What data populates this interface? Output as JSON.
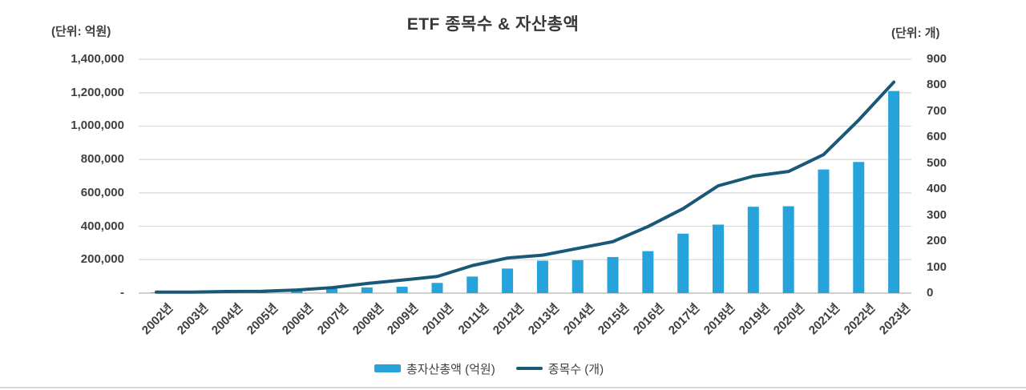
{
  "title": "ETF 종목수 & 자산총액",
  "left_axis": {
    "unit_label": "(단위: 억원)",
    "tick_labels_top_to_bottom": [
      "1,400,000",
      "1,200,000",
      "1,000,000",
      "800,000",
      "600,000",
      "400,000",
      "200,000",
      "-"
    ]
  },
  "right_axis": {
    "unit_label": "(단위: 개)",
    "tick_labels_top_to_bottom": [
      "900",
      "800",
      "700",
      "600",
      "500",
      "400",
      "300",
      "200",
      "100",
      "0"
    ]
  },
  "legend": {
    "items": [
      {
        "label": "총자산총액 (억원)",
        "swatch": "bar",
        "color": "#27a3db"
      },
      {
        "label": "종목수 (개)",
        "swatch": "line",
        "color": "#1a5878"
      }
    ]
  },
  "colors": {
    "bar": "#27a3db",
    "line": "#1a5878",
    "grid": "#d9d9d9",
    "axis": "#c0c0c0",
    "text": "#3f3f3f"
  },
  "chart_data": {
    "type": "combo: bar + line, dual axis",
    "title": "ETF 종목수 & 자산총액",
    "categories": [
      "2002년",
      "2003년",
      "2004년",
      "2005년",
      "2006년",
      "2007년",
      "2008년",
      "2009년",
      "2010년",
      "2011년",
      "2012년",
      "2013년",
      "2014년",
      "2015년",
      "2016년",
      "2017년",
      "2018년",
      "2019년",
      "2020년",
      "2021년",
      "2022년",
      "2023년"
    ],
    "series": [
      {
        "name": "총자산총액 (억원)",
        "type": "bar",
        "axis": "left",
        "unit": "억원",
        "values": [
          3400,
          7300,
          5300,
          8400,
          16000,
          27000,
          34000,
          38000,
          61000,
          99000,
          147000,
          194000,
          197000,
          216000,
          251000,
          356000,
          410000,
          517000,
          520000,
          740000,
          785000,
          1210000
        ]
      },
      {
        "name": "종목수 (개)",
        "type": "line",
        "axis": "right",
        "unit": "개",
        "values": [
          4,
          4,
          6,
          7,
          12,
          21,
          37,
          50,
          64,
          106,
          135,
          146,
          172,
          198,
          256,
          325,
          413,
          450,
          468,
          533,
          666,
          812
        ]
      }
    ],
    "left_ylim": [
      0,
      1400000
    ],
    "left_tick_step": 200000,
    "right_ylim": [
      0,
      900
    ],
    "right_tick_step": 100,
    "grid": "horizontal gridlines aligned to left axis (every 200,000)",
    "legend_position": "bottom center",
    "x_label_rotation_deg": 45
  }
}
